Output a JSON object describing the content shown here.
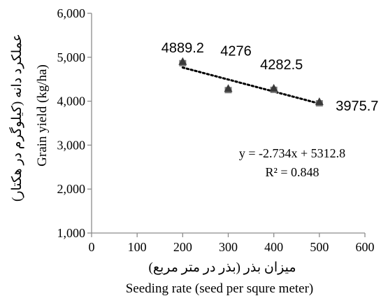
{
  "chart_data": {
    "type": "scatter",
    "x": [
      200,
      300,
      400,
      500
    ],
    "y": [
      4889.2,
      4276,
      4282.5,
      3975.7
    ],
    "data_labels": [
      "4889.2",
      "4276",
      "4282.5",
      "3975.7"
    ],
    "xlim": [
      0,
      600
    ],
    "ylim": [
      1000,
      6000
    ],
    "x_ticks": [
      0,
      100,
      200,
      300,
      400,
      500,
      600
    ],
    "x_tick_labels": [
      "0",
      "100",
      "200",
      "300",
      "400",
      "500",
      "600"
    ],
    "y_ticks": [
      1000,
      2000,
      3000,
      4000,
      5000,
      6000
    ],
    "y_tick_labels": [
      "1,000",
      "2,000",
      "3,000",
      "4,000",
      "5,000",
      "6,000"
    ],
    "xlabel_fa": "میزان بذر (بذر در متر مربع)",
    "xlabel_en": "Seeding rate (seed per squre meter)",
    "ylabel_fa": "عملکرد دانه (کیلوگرم در هکتار)",
    "ylabel_en": "Grain yield (kg/ha)",
    "trendline": {
      "type": "linear",
      "slope": -2.734,
      "intercept": 5312.8,
      "equation": "y = -2.734x + 5312.8",
      "r2_label": "R² = 0.848"
    },
    "grid": false,
    "marker_color": "#3a3a3a",
    "trend_color": "#000000"
  }
}
